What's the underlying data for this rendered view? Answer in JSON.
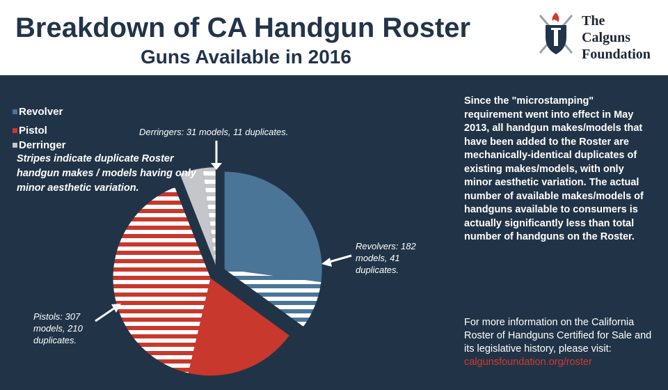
{
  "header": {
    "title": "Breakdown of CA Handgun Roster",
    "subtitle": "Guns Available in 2016",
    "logo_lines": [
      "The",
      "Calguns",
      "Foundation"
    ]
  },
  "legend": {
    "items": [
      {
        "label": "Revolver",
        "color": "#4a7597"
      },
      {
        "label": "Pistol",
        "color": "#c9382c"
      },
      {
        "label": "Derringer",
        "color": "#c4c6c9"
      }
    ],
    "note": "Stripes indicate duplicate Roster handgun makes / models having only minor aesthetic variation."
  },
  "callouts": {
    "derringers": "Derringers: 31 models, 11 duplicates.",
    "revolvers": "Revolvers: 182 models, 41 duplicates.",
    "pistols": "Pistols: 307 models, 210 duplicates."
  },
  "side_text": "Since the \"microstamping\" requirement went into effect in May 2013, all handgun makes/models that have been added to the Roster are mechanically-identical duplicates of existing makes/models, with only minor aesthetic variation. The actual number of available makes/models of handguns available to consumers is actually significantly less than total number of handguns on the Roster.",
  "info": {
    "text": "For more information on the California Roster of Handguns Certified for Sale and its legislative history, please visit:",
    "link": "calgunsfoundation.org/roster"
  },
  "chart_data": {
    "type": "pie",
    "title": "Breakdown of CA Handgun Roster",
    "subtitle": "Guns Available in 2016",
    "series": [
      {
        "name": "Revolver",
        "models": 182,
        "duplicates": 41,
        "unique": 141,
        "color": "#4a7597"
      },
      {
        "name": "Pistol",
        "models": 307,
        "duplicates": 210,
        "unique": 97,
        "color": "#c9382c"
      },
      {
        "name": "Derringer",
        "models": 31,
        "duplicates": 11,
        "unique": 20,
        "color": "#c4c6c9"
      }
    ],
    "stripe_meaning": "duplicates",
    "exploded": true
  }
}
